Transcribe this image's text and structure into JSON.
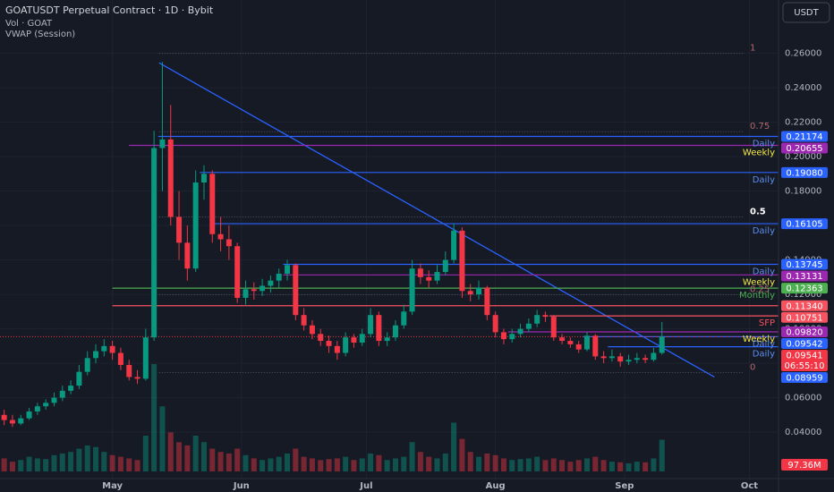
{
  "chart_data": {
    "type": "candlestick",
    "title": "GOATUSDT Perpetual Contract · 1D · Bybit",
    "indicators": [
      "Vol · GOAT",
      "VWAP (Session)"
    ],
    "currency": "USDT",
    "grid": true,
    "up_color": "#089981",
    "down_color": "#f23645",
    "xlim": [
      0,
      187
    ],
    "ylim": [
      0.013,
      0.291
    ],
    "xticks": [
      {
        "value": 27,
        "label": "May"
      },
      {
        "value": 58,
        "label": "Jun"
      },
      {
        "value": 88,
        "label": "Jul"
      },
      {
        "value": 119,
        "label": "Aug"
      },
      {
        "value": 150,
        "label": "Sep"
      },
      {
        "value": 180,
        "label": "Oct"
      }
    ],
    "yticks": [
      {
        "value": 0.26,
        "label": "0.26000"
      },
      {
        "value": 0.24,
        "label": "0.24000"
      },
      {
        "value": 0.22,
        "label": "0.22000"
      },
      {
        "value": 0.2,
        "label": "0.20000"
      },
      {
        "value": 0.18,
        "label": "0.18000"
      },
      {
        "value": 0.16,
        "label": "0.16000"
      },
      {
        "value": 0.14,
        "label": "0.14000"
      },
      {
        "value": 0.12,
        "label": "0.12000"
      },
      {
        "value": 0.1,
        "label": "0.10000"
      },
      {
        "value": 0.08,
        "label": "0.08000"
      },
      {
        "value": 0.06,
        "label": "0.06000"
      },
      {
        "value": 0.04,
        "label": "0.04000"
      }
    ],
    "x": [
      1,
      3,
      5,
      7,
      9,
      11,
      13,
      15,
      17,
      19,
      21,
      23,
      25,
      27,
      29,
      31,
      33,
      35,
      37,
      39,
      41,
      43,
      45,
      47,
      49,
      51,
      53,
      55,
      57,
      59,
      61,
      63,
      65,
      67,
      69,
      71,
      73,
      75,
      77,
      79,
      81,
      83,
      85,
      87,
      89,
      91,
      93,
      95,
      97,
      99,
      101,
      103,
      105,
      107,
      109,
      111,
      113,
      115,
      117,
      119,
      121,
      123,
      125,
      127,
      129,
      131,
      133,
      135,
      137,
      139,
      141,
      143,
      145,
      147,
      149,
      151,
      153,
      155,
      157,
      159
    ],
    "ohlc": [
      [
        0.05,
        0.053,
        0.044,
        0.047
      ],
      [
        0.047,
        0.05,
        0.043,
        0.045
      ],
      [
        0.045,
        0.05,
        0.044,
        0.048
      ],
      [
        0.048,
        0.054,
        0.047,
        0.052
      ],
      [
        0.052,
        0.057,
        0.05,
        0.055
      ],
      [
        0.055,
        0.059,
        0.053,
        0.057
      ],
      [
        0.057,
        0.063,
        0.055,
        0.06
      ],
      [
        0.06,
        0.067,
        0.058,
        0.064
      ],
      [
        0.064,
        0.07,
        0.062,
        0.067
      ],
      [
        0.067,
        0.079,
        0.065,
        0.075
      ],
      [
        0.075,
        0.087,
        0.073,
        0.083
      ],
      [
        0.083,
        0.091,
        0.08,
        0.087
      ],
      [
        0.087,
        0.094,
        0.084,
        0.09
      ],
      [
        0.09,
        0.093,
        0.082,
        0.086
      ],
      [
        0.086,
        0.089,
        0.076,
        0.079
      ],
      [
        0.079,
        0.082,
        0.07,
        0.072
      ],
      [
        0.072,
        0.076,
        0.068,
        0.071
      ],
      [
        0.071,
        0.1,
        0.07,
        0.095
      ],
      [
        0.095,
        0.215,
        0.093,
        0.205
      ],
      [
        0.205,
        0.255,
        0.18,
        0.21
      ],
      [
        0.21,
        0.23,
        0.16,
        0.165
      ],
      [
        0.165,
        0.18,
        0.14,
        0.15
      ],
      [
        0.15,
        0.16,
        0.128,
        0.135
      ],
      [
        0.135,
        0.192,
        0.133,
        0.185
      ],
      [
        0.185,
        0.195,
        0.175,
        0.19
      ],
      [
        0.19,
        0.192,
        0.15,
        0.155
      ],
      [
        0.155,
        0.165,
        0.145,
        0.152
      ],
      [
        0.152,
        0.16,
        0.14,
        0.148
      ],
      [
        0.148,
        0.15,
        0.115,
        0.118
      ],
      [
        0.118,
        0.128,
        0.114,
        0.123
      ],
      [
        0.123,
        0.127,
        0.117,
        0.122
      ],
      [
        0.122,
        0.129,
        0.119,
        0.125
      ],
      [
        0.125,
        0.131,
        0.121,
        0.128
      ],
      [
        0.128,
        0.135,
        0.124,
        0.132
      ],
      [
        0.132,
        0.14,
        0.128,
        0.137
      ],
      [
        0.137,
        0.138,
        0.105,
        0.108
      ],
      [
        0.108,
        0.112,
        0.099,
        0.102
      ],
      [
        0.102,
        0.105,
        0.094,
        0.097
      ],
      [
        0.097,
        0.1,
        0.09,
        0.093
      ],
      [
        0.093,
        0.096,
        0.086,
        0.09
      ],
      [
        0.09,
        0.093,
        0.082,
        0.086
      ],
      [
        0.086,
        0.098,
        0.084,
        0.095
      ],
      [
        0.095,
        0.097,
        0.089,
        0.092
      ],
      [
        0.092,
        0.1,
        0.09,
        0.097
      ],
      [
        0.097,
        0.112,
        0.095,
        0.108
      ],
      [
        0.108,
        0.11,
        0.09,
        0.093
      ],
      [
        0.093,
        0.098,
        0.09,
        0.095
      ],
      [
        0.095,
        0.105,
        0.093,
        0.102
      ],
      [
        0.102,
        0.114,
        0.1,
        0.11
      ],
      [
        0.11,
        0.14,
        0.108,
        0.135
      ],
      [
        0.135,
        0.138,
        0.126,
        0.13
      ],
      [
        0.13,
        0.134,
        0.124,
        0.128
      ],
      [
        0.128,
        0.137,
        0.126,
        0.133
      ],
      [
        0.133,
        0.145,
        0.131,
        0.14
      ],
      [
        0.14,
        0.161,
        0.138,
        0.157
      ],
      [
        0.157,
        0.159,
        0.118,
        0.122
      ],
      [
        0.122,
        0.126,
        0.116,
        0.12
      ],
      [
        0.12,
        0.128,
        0.117,
        0.124
      ],
      [
        0.124,
        0.125,
        0.105,
        0.108
      ],
      [
        0.108,
        0.11,
        0.095,
        0.098
      ],
      [
        0.098,
        0.1,
        0.091,
        0.094
      ],
      [
        0.094,
        0.1,
        0.092,
        0.097
      ],
      [
        0.097,
        0.103,
        0.095,
        0.1
      ],
      [
        0.1,
        0.106,
        0.098,
        0.103
      ],
      [
        0.103,
        0.111,
        0.101,
        0.108
      ],
      [
        0.108,
        0.11,
        0.104,
        0.107
      ],
      [
        0.107,
        0.108,
        0.093,
        0.095
      ],
      [
        0.095,
        0.097,
        0.091,
        0.093
      ],
      [
        0.093,
        0.095,
        0.089,
        0.091
      ],
      [
        0.091,
        0.093,
        0.086,
        0.088
      ],
      [
        0.088,
        0.098,
        0.087,
        0.096
      ],
      [
        0.096,
        0.097,
        0.082,
        0.084
      ],
      [
        0.084,
        0.087,
        0.08,
        0.083
      ],
      [
        0.083,
        0.088,
        0.081,
        0.084
      ],
      [
        0.084,
        0.086,
        0.078,
        0.081
      ],
      [
        0.081,
        0.085,
        0.079,
        0.082
      ],
      [
        0.082,
        0.086,
        0.08,
        0.083
      ],
      [
        0.083,
        0.085,
        0.08,
        0.082
      ],
      [
        0.082,
        0.089,
        0.081,
        0.086
      ],
      [
        0.086,
        0.104,
        0.085,
        0.0954
      ]
    ],
    "volume": [
      40,
      30,
      35,
      45,
      40,
      38,
      50,
      55,
      60,
      70,
      80,
      75,
      60,
      50,
      45,
      40,
      35,
      110,
      330,
      200,
      120,
      90,
      80,
      110,
      90,
      70,
      60,
      55,
      70,
      50,
      40,
      35,
      40,
      45,
      55,
      70,
      45,
      40,
      35,
      38,
      40,
      45,
      35,
      40,
      55,
      50,
      35,
      40,
      45,
      90,
      60,
      45,
      40,
      55,
      150,
      100,
      60,
      45,
      55,
      50,
      40,
      35,
      38,
      40,
      45,
      35,
      40,
      35,
      30,
      35,
      40,
      45,
      35,
      30,
      28,
      25,
      30,
      28,
      40,
      97.36
    ],
    "volume_tag": {
      "value": 97.36,
      "label": "97.36M"
    },
    "trendline": {
      "x": [
        38.2,
        171.6
      ],
      "values": [
        0.2545,
        0.072
      ],
      "color": "#2962ff"
    },
    "fib": [
      {
        "label": "1",
        "value": 0.26
      },
      {
        "label": "0.75",
        "value": 0.2145
      },
      {
        "label": "0.5",
        "value": 0.165
      },
      {
        "label": "0.25",
        "value": 0.1198
      },
      {
        "label": "0",
        "value": 0.0746
      }
    ],
    "levels": [
      {
        "value": 0.21174,
        "tag": "0.21174",
        "color": "#2962ff",
        "from": 38,
        "label": "Daily",
        "label_color": "#5b8def"
      },
      {
        "value": 0.20655,
        "tag": "0.20655",
        "color": "#9c27b0",
        "from": 31,
        "label": "Weekly",
        "label_color": "#f5e94a"
      },
      {
        "value": 0.1908,
        "tag": "0.19080",
        "color": "#2962ff",
        "from": 48,
        "label": "Daily",
        "label_color": "#5b8def"
      },
      {
        "value": 0.16105,
        "tag": "0.16105",
        "color": "#2962ff",
        "from": 51,
        "label": "Daily",
        "label_color": "#5b8def"
      },
      {
        "value": 0.13745,
        "tag": "0.13745",
        "color": "#2962ff",
        "from": 68,
        "label": "Daily",
        "label_color": "#5b8def"
      },
      {
        "value": 0.13131,
        "tag": "0.13131",
        "color": "#9c27b0",
        "from": 68,
        "label": "Weekly",
        "label_color": "#f5e94a"
      },
      {
        "value": 0.12363,
        "tag": "0.12363",
        "color": "#4caf50",
        "from": 27,
        "label": "Monthly",
        "label_color": "#4caf50"
      },
      {
        "value": 0.1134,
        "tag": "0.11340",
        "color": "#f7525f",
        "from": 27
      },
      {
        "value": 0.10751,
        "tag": "0.10751",
        "color": "#f7525f",
        "from": 132,
        "label": "SFP",
        "label_color": "#f7525f"
      },
      {
        "value": 0.0982,
        "tag": "0.09820",
        "color": "#9c27b0",
        "from": 122,
        "label": "Weekly",
        "label_color": "#f5e94a"
      },
      {
        "value": 0.09542,
        "tag": "0.09542",
        "color": "#2962ff",
        "from": 140,
        "label": "Daily",
        "label_color": "#5b8def"
      },
      {
        "value": 0.08959,
        "tag": "0.08959",
        "color": "#2962ff",
        "from": 146,
        "label": "Daily",
        "label_color": "#5b8def"
      }
    ],
    "last_price": {
      "value": 0.09541,
      "label": "0.09541",
      "countdown": "06:55:10",
      "color": "#f23645"
    }
  }
}
